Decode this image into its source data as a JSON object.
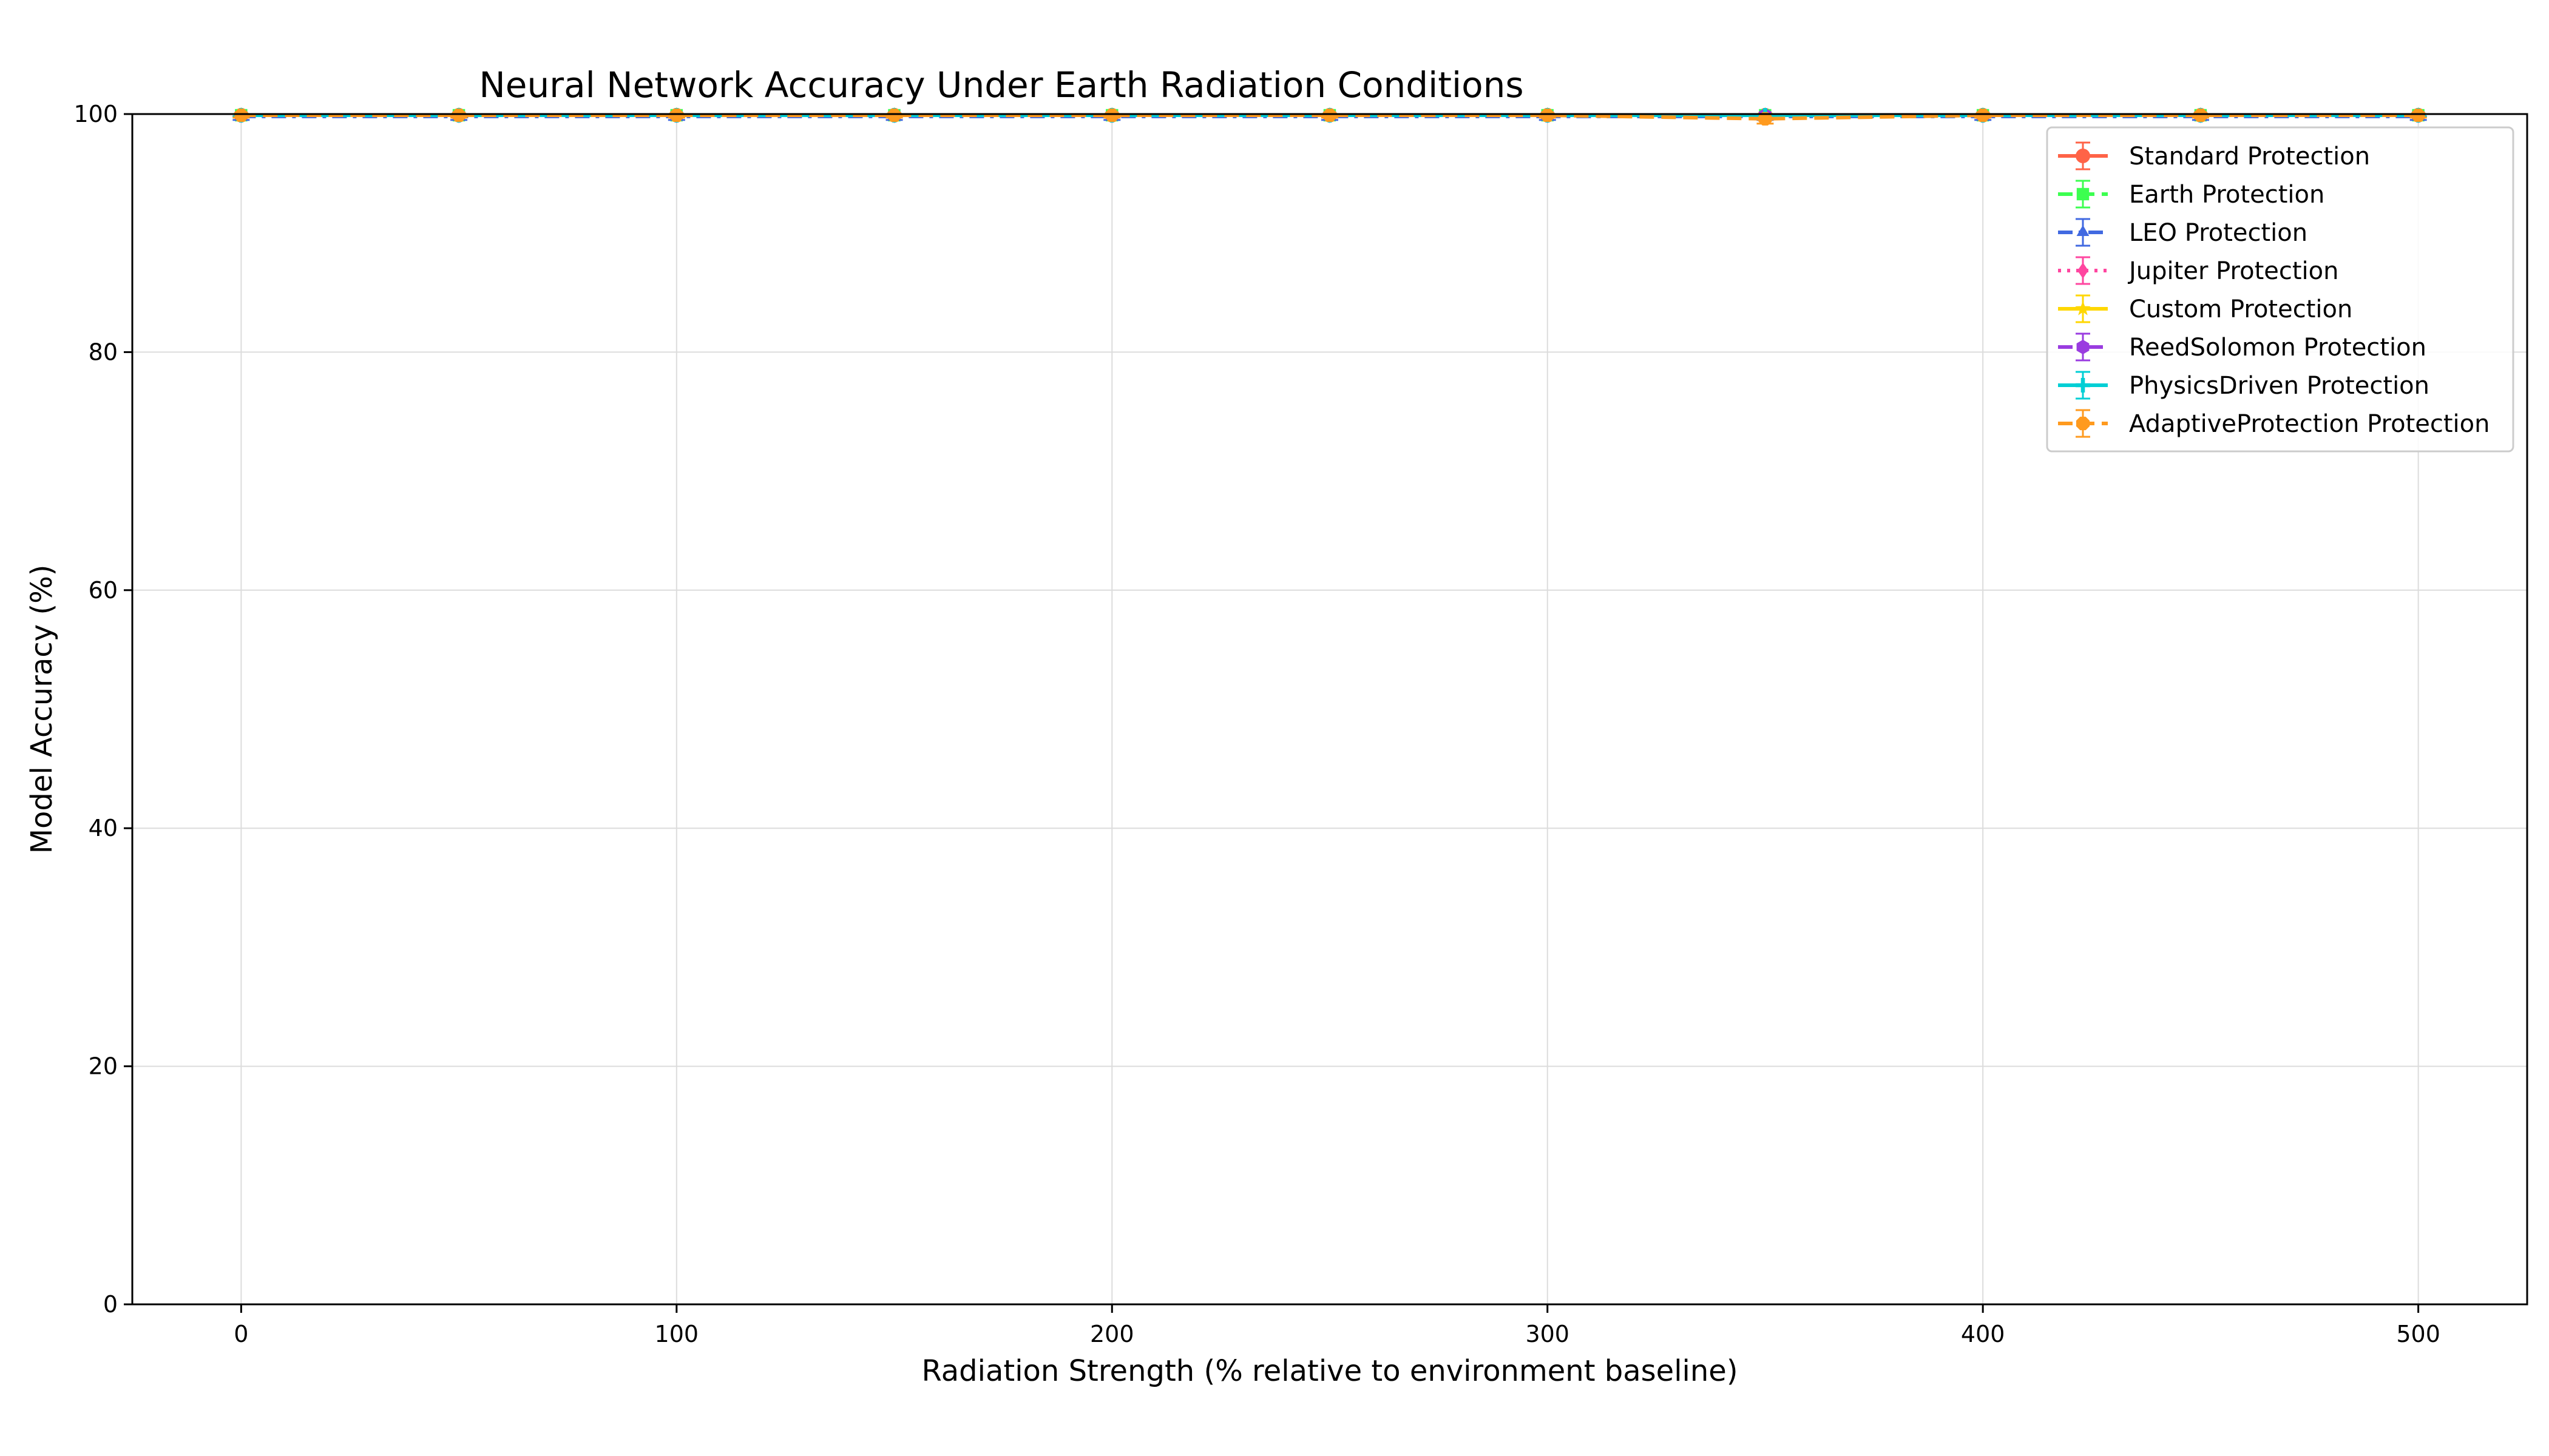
{
  "chart_data": {
    "type": "line",
    "title": "Neural Network Accuracy Under Earth Radiation Conditions",
    "xlabel": "Radiation Strength (% relative to environment baseline)",
    "ylabel": "Model Accuracy (%)",
    "xlim": [
      -25,
      525
    ],
    "ylim": [
      0,
      100
    ],
    "xticks": [
      0,
      100,
      200,
      300,
      400,
      500
    ],
    "yticks": [
      0,
      20,
      40,
      60,
      80,
      100
    ],
    "grid": true,
    "legend_position": "top-right",
    "x": [
      0,
      50,
      100,
      150,
      200,
      250,
      300,
      350,
      400,
      450,
      500
    ],
    "series": [
      {
        "name": "Standard Protection",
        "color": "#ff6347",
        "marker": "circle",
        "dash": "solid",
        "values": [
          99.9,
          99.9,
          99.9,
          99.9,
          99.9,
          99.9,
          99.9,
          99.9,
          99.9,
          99.9,
          99.9
        ],
        "errors": [
          0.1,
          0.1,
          0.1,
          0.1,
          0.1,
          0.1,
          0.1,
          0.1,
          0.1,
          0.1,
          0.1
        ]
      },
      {
        "name": "Earth Protection",
        "color": "#3cff50",
        "marker": "square",
        "dash": "dashed",
        "values": [
          99.9,
          99.9,
          99.9,
          99.9,
          99.9,
          99.9,
          99.9,
          99.9,
          99.9,
          99.9,
          99.9
        ],
        "errors": [
          0.1,
          0.1,
          0.1,
          0.1,
          0.1,
          0.1,
          0.1,
          0.1,
          0.1,
          0.1,
          0.1
        ]
      },
      {
        "name": "LEO Protection",
        "color": "#4169e1",
        "marker": "triangle",
        "dash": "dashdot",
        "values": [
          99.8,
          99.8,
          99.8,
          99.8,
          99.8,
          99.8,
          99.8,
          99.8,
          99.8,
          99.8,
          99.8
        ],
        "errors": [
          0.3,
          0.3,
          0.3,
          0.3,
          0.3,
          0.3,
          0.3,
          0.3,
          0.3,
          0.3,
          0.3
        ]
      },
      {
        "name": "Jupiter Protection",
        "color": "#ff46a0",
        "marker": "diamond",
        "dash": "dotted",
        "values": [
          99.9,
          99.9,
          99.9,
          99.9,
          99.9,
          99.9,
          99.9,
          99.9,
          99.9,
          99.9,
          99.9
        ],
        "errors": [
          0.1,
          0.1,
          0.1,
          0.1,
          0.1,
          0.1,
          0.1,
          0.1,
          0.1,
          0.1,
          0.1
        ]
      },
      {
        "name": "Custom Protection",
        "color": "#ffd700",
        "marker": "star",
        "dash": "solid",
        "values": [
          99.9,
          99.9,
          99.9,
          99.9,
          99.9,
          99.9,
          99.9,
          99.9,
          99.9,
          99.9,
          99.9
        ],
        "errors": [
          0.1,
          0.1,
          0.1,
          0.1,
          0.1,
          0.1,
          0.1,
          0.1,
          0.1,
          0.1,
          0.1
        ]
      },
      {
        "name": "ReedSolomon Protection",
        "color": "#9a3ce0",
        "marker": "hexagon",
        "dash": "dashdot",
        "values": [
          99.9,
          99.9,
          99.9,
          99.9,
          99.9,
          99.9,
          99.9,
          99.9,
          99.9,
          99.9,
          99.9
        ],
        "errors": [
          0.1,
          0.1,
          0.1,
          0.1,
          0.1,
          0.1,
          0.1,
          0.1,
          0.1,
          0.1,
          0.1
        ]
      },
      {
        "name": "PhysicsDriven Protection",
        "color": "#00cfd5",
        "marker": "plus",
        "dash": "solid",
        "values": [
          99.9,
          99.9,
          99.9,
          99.9,
          99.9,
          99.9,
          99.9,
          99.9,
          99.9,
          99.9,
          99.9
        ],
        "errors": [
          0.1,
          0.1,
          0.1,
          0.1,
          0.1,
          0.1,
          0.1,
          0.1,
          0.1,
          0.1,
          0.1
        ]
      },
      {
        "name": "AdaptiveProtection Protection",
        "color": "#ff9a1e",
        "marker": "octagon",
        "dash": "dashed",
        "values": [
          99.9,
          99.9,
          99.9,
          99.9,
          99.9,
          99.9,
          99.9,
          99.6,
          99.9,
          99.9,
          99.9
        ],
        "errors": [
          0.2,
          0.2,
          0.2,
          0.2,
          0.2,
          0.2,
          0.2,
          0.4,
          0.2,
          0.2,
          0.2
        ]
      }
    ]
  }
}
